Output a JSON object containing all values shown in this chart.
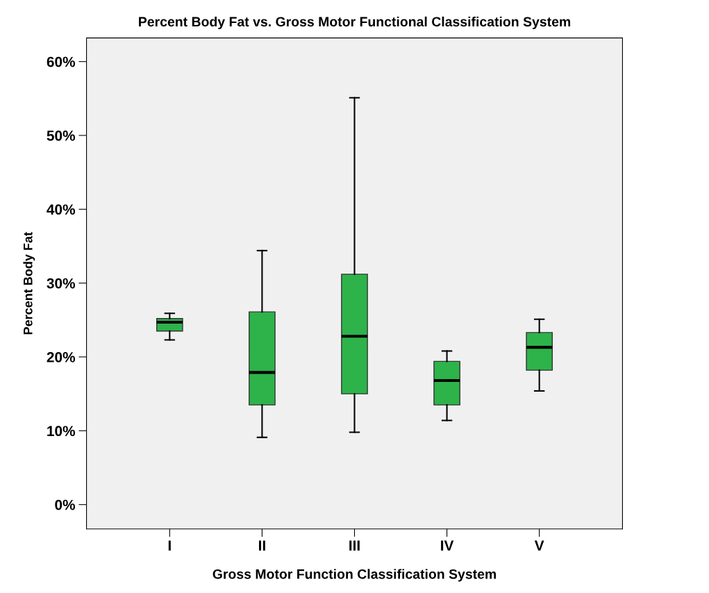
{
  "chart_data": {
    "type": "box",
    "title": "Percent Body Fat vs. Gross Motor Functional Classification System",
    "xlabel": "Gross Motor Function Classification System",
    "ylabel": "Percent Body Fat",
    "categories": [
      "I",
      "II",
      "III",
      "IV",
      "V"
    ],
    "series": [
      {
        "color": "#2db34a",
        "boxes": [
          {
            "low": 22.3,
            "q1": 23.5,
            "median": 24.7,
            "q3": 25.2,
            "high": 25.9
          },
          {
            "low": 9.1,
            "q1": 13.5,
            "median": 17.9,
            "q3": 26.1,
            "high": 34.4
          },
          {
            "low": 9.8,
            "q1": 15.0,
            "median": 22.8,
            "q3": 31.2,
            "high": 55.1
          },
          {
            "low": 11.4,
            "q1": 13.5,
            "median": 16.8,
            "q3": 19.4,
            "high": 20.8
          },
          {
            "low": 15.4,
            "q1": 18.2,
            "median": 21.3,
            "q3": 23.3,
            "high": 25.1
          }
        ]
      }
    ],
    "ylim": [
      -3.3,
      63.2
    ],
    "yticks": [
      {
        "value": 0,
        "label": "0%"
      },
      {
        "value": 10,
        "label": "10%"
      },
      {
        "value": 20,
        "label": "20%"
      },
      {
        "value": 30,
        "label": "30%"
      },
      {
        "value": 40,
        "label": "40%"
      },
      {
        "value": 50,
        "label": "50%"
      },
      {
        "value": 60,
        "label": "60%"
      }
    ],
    "grid": false,
    "legend": false
  }
}
